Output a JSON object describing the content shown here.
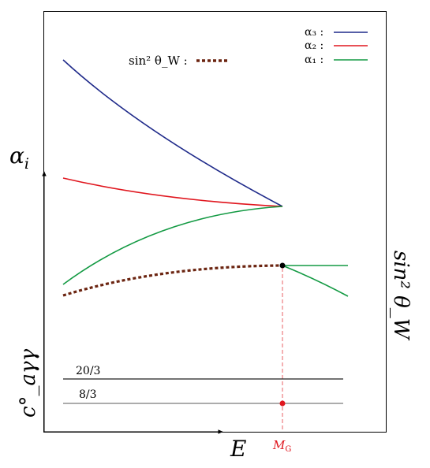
{
  "colors": {
    "alpha3": "#1f2a8a",
    "alpha2": "#e0161e",
    "alpha1": "#139a43",
    "sin2": "#6b2410",
    "mg": "#e0161e",
    "axis": "#000000",
    "level": "#222222"
  },
  "legend": {
    "alpha3_label": "α₃ :",
    "alpha2_label": "α₂ :",
    "alpha1_label": "α₁ :",
    "sin2_label": "sin² θ_W :"
  },
  "axes": {
    "y_label": "α",
    "y_label_sub": "i",
    "x_label": "E",
    "right_label": "sin² θ_W",
    "lower_label": "c°_aγγ"
  },
  "levels": {
    "upper": "20/3",
    "lower": "8/3"
  },
  "marker": {
    "label": "M",
    "label_sub": "G"
  }
}
